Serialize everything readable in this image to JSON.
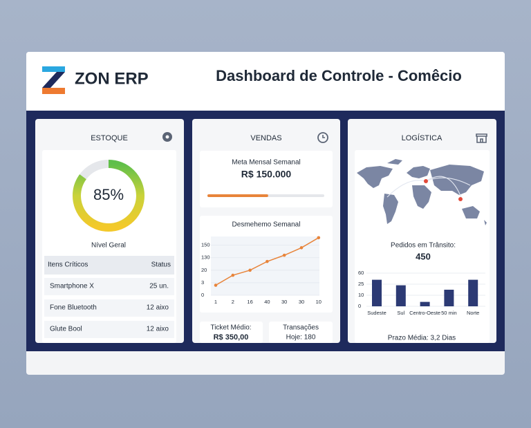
{
  "header": {
    "logo": "ZON ERP",
    "title": "Dashboard de Controle - Comêcio"
  },
  "estoque": {
    "title": "ESTOQUE",
    "gauge": {
      "value": 85,
      "value_label": "85%"
    },
    "caption": "Nível Geral",
    "table": {
      "header": [
        "Itens Críticos",
        "Status"
      ],
      "rows": [
        [
          "Smartphone X",
          "25 un."
        ],
        [
          "Fone Bluetooth",
          "12 aixo"
        ],
        [
          "Glute Bool",
          "12 aixo"
        ]
      ]
    }
  },
  "vendas": {
    "title": "VENDAS",
    "meta": {
      "label": "Meta Mensal Semanal",
      "value": "R$ 150.000",
      "progress": 52
    },
    "chart": {
      "type": "line",
      "title": "Desmehemo Semanal",
      "categories": [
        "1",
        "2",
        "16",
        "40",
        "30",
        "30",
        "10"
      ],
      "values": [
        0.8,
        1.6,
        2.0,
        2.7,
        3.2,
        3.8,
        4.6
      ],
      "color": "#e8843a",
      "ylim": [
        0,
        4.7
      ],
      "yticks": [
        {
          "value": 0,
          "label": "0"
        },
        {
          "value": 1,
          "label": "3"
        },
        {
          "value": 2,
          "label": "20"
        },
        {
          "value": 3,
          "label": "130"
        },
        {
          "value": 4,
          "label": "150"
        }
      ]
    },
    "ticket": {
      "label": "Ticket Médio:",
      "value": "R$ 350,00"
    },
    "transacoes": {
      "label": "Transações",
      "value": "Hoje: 180"
    }
  },
  "logistica": {
    "title": "LOGÍSTICA",
    "transit": {
      "label": "Pedidos em Trânsito:",
      "value": "450"
    },
    "chart": {
      "type": "bar",
      "categories": [
        "Sudeste",
        "Sul",
        "Centro-Oeste",
        "50 min",
        "Norte"
      ],
      "values": [
        2.4,
        1.9,
        0.4,
        1.5,
        2.4
      ],
      "color": "#2c3a74",
      "ylim": [
        0,
        3
      ],
      "yticks": [
        {
          "value": 0,
          "label": "0"
        },
        {
          "value": 1,
          "label": "10"
        },
        {
          "value": 2,
          "label": "25"
        },
        {
          "value": 3,
          "label": "60"
        }
      ]
    },
    "footer": "Prazo Média: 3,2 Dias"
  }
}
